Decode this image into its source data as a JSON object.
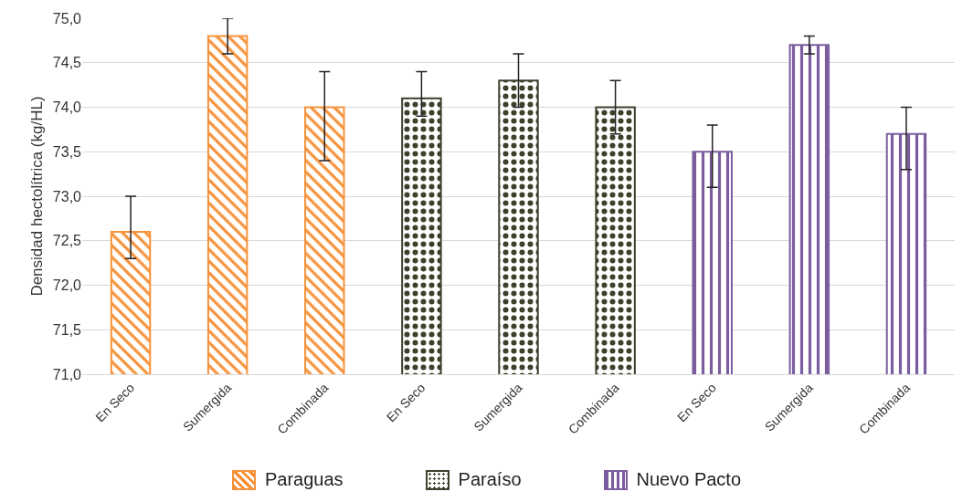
{
  "chart_data": {
    "type": "bar",
    "ylabel": "Densidad hectolítrica (kg/HL)",
    "categories": [
      "En Seco",
      "Sumergida",
      "Combinada",
      "En Seco",
      "Sumergida",
      "Combinada",
      "En Seco",
      "Sumergida",
      "Combinada"
    ],
    "series": [
      {
        "name": "Paraguas",
        "color": "#f7923a",
        "values": [
          72.6,
          74.8,
          74.0,
          null,
          null,
          null,
          null,
          null,
          null
        ],
        "errors": [
          [
            72.3,
            73.0
          ],
          [
            74.6,
            75.0
          ],
          [
            73.4,
            74.4
          ],
          null,
          null,
          null,
          null,
          null,
          null
        ]
      },
      {
        "name": "Paraíso",
        "color": "#3f3f2c",
        "values": [
          null,
          null,
          null,
          74.1,
          74.3,
          74.0,
          null,
          null,
          null
        ],
        "errors": [
          null,
          null,
          null,
          [
            73.9,
            74.4
          ],
          [
            74.0,
            74.6
          ],
          [
            73.7,
            74.3
          ],
          null,
          null,
          null
        ]
      },
      {
        "name": "Nuevo Pacto",
        "color": "#7b5c9e",
        "values": [
          null,
          null,
          null,
          null,
          null,
          null,
          73.5,
          74.7,
          73.7
        ],
        "errors": [
          null,
          null,
          null,
          null,
          null,
          null,
          [
            73.1,
            73.8
          ],
          [
            74.6,
            74.8
          ],
          [
            73.3,
            74.0
          ]
        ]
      }
    ],
    "ylim": [
      71,
      75
    ],
    "yticks": [
      {
        "value": 71,
        "label": "71,0"
      },
      {
        "value": 71.5,
        "label": "71,5"
      },
      {
        "value": 72,
        "label": "72,0"
      },
      {
        "value": 72.5,
        "label": "72,5"
      },
      {
        "value": 73,
        "label": "73,0"
      },
      {
        "value": 73.5,
        "label": "73,5"
      },
      {
        "value": 74,
        "label": "74,0"
      },
      {
        "value": 74.5,
        "label": "74,5"
      },
      {
        "value": 75,
        "label": "75,0"
      }
    ],
    "grid": "y",
    "legend": "bottom"
  }
}
